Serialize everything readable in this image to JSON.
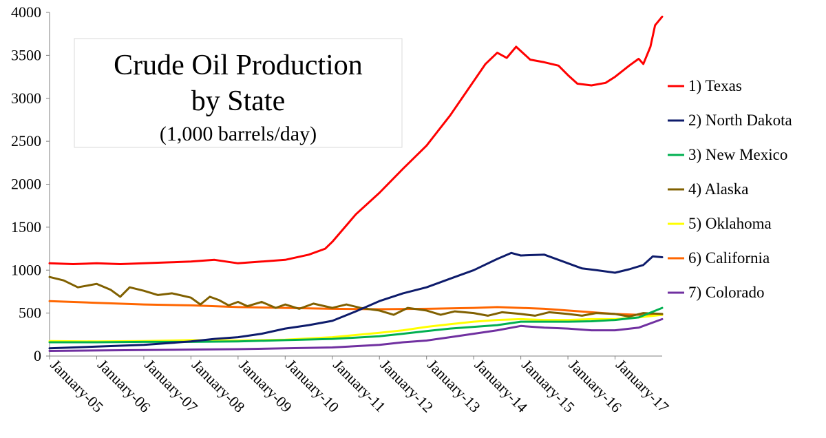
{
  "chart_data": {
    "type": "line",
    "title": "Crude Oil Production",
    "title_line2": "by State",
    "subtitle": "(1,000 barrels/day)",
    "xlabel": "",
    "ylabel": "",
    "ylim": [
      0,
      4000
    ],
    "y_ticks": [
      0,
      500,
      1000,
      1500,
      2000,
      2500,
      3000,
      3500,
      4000
    ],
    "x_ticks": [
      "January-05",
      "January-06",
      "January-07",
      "January-08",
      "January-09",
      "January-10",
      "January-11",
      "January-12",
      "January-13",
      "January-14",
      "January-15",
      "January-16",
      "January-17"
    ],
    "x_range_years": [
      2005.0,
      2018.0
    ],
    "legend_position": "right",
    "grid": false,
    "series": [
      {
        "name": "1) Texas",
        "color": "#ff0000",
        "points": [
          [
            2005.0,
            1080
          ],
          [
            2005.5,
            1070
          ],
          [
            2006.0,
            1080
          ],
          [
            2006.5,
            1070
          ],
          [
            2007.0,
            1080
          ],
          [
            2007.5,
            1090
          ],
          [
            2008.0,
            1100
          ],
          [
            2008.5,
            1120
          ],
          [
            2009.0,
            1080
          ],
          [
            2009.5,
            1100
          ],
          [
            2010.0,
            1120
          ],
          [
            2010.5,
            1180
          ],
          [
            2010.85,
            1250
          ],
          [
            2011.0,
            1330
          ],
          [
            2011.5,
            1650
          ],
          [
            2012.0,
            1900
          ],
          [
            2012.5,
            2180
          ],
          [
            2013.0,
            2450
          ],
          [
            2013.5,
            2800
          ],
          [
            2014.0,
            3200
          ],
          [
            2014.25,
            3400
          ],
          [
            2014.5,
            3530
          ],
          [
            2014.7,
            3470
          ],
          [
            2014.9,
            3600
          ],
          [
            2015.2,
            3450
          ],
          [
            2015.5,
            3420
          ],
          [
            2015.8,
            3380
          ],
          [
            2016.0,
            3270
          ],
          [
            2016.2,
            3170
          ],
          [
            2016.5,
            3150
          ],
          [
            2016.8,
            3180
          ],
          [
            2017.0,
            3250
          ],
          [
            2017.3,
            3380
          ],
          [
            2017.5,
            3460
          ],
          [
            2017.6,
            3400
          ],
          [
            2017.75,
            3600
          ],
          [
            2017.85,
            3850
          ],
          [
            2018.0,
            3950
          ]
        ]
      },
      {
        "name": "2) North Dakota",
        "color": "#0d1b6b",
        "points": [
          [
            2005.0,
            90
          ],
          [
            2006.0,
            110
          ],
          [
            2007.0,
            130
          ],
          [
            2008.0,
            170
          ],
          [
            2008.5,
            200
          ],
          [
            2009.0,
            220
          ],
          [
            2009.5,
            260
          ],
          [
            2010.0,
            320
          ],
          [
            2010.5,
            360
          ],
          [
            2011.0,
            410
          ],
          [
            2011.5,
            520
          ],
          [
            2012.0,
            640
          ],
          [
            2012.5,
            730
          ],
          [
            2013.0,
            800
          ],
          [
            2013.5,
            900
          ],
          [
            2014.0,
            1000
          ],
          [
            2014.5,
            1130
          ],
          [
            2014.8,
            1200
          ],
          [
            2015.0,
            1170
          ],
          [
            2015.5,
            1180
          ],
          [
            2016.0,
            1080
          ],
          [
            2016.3,
            1020
          ],
          [
            2016.6,
            1000
          ],
          [
            2017.0,
            970
          ],
          [
            2017.3,
            1010
          ],
          [
            2017.6,
            1060
          ],
          [
            2017.8,
            1160
          ],
          [
            2018.0,
            1150
          ]
        ]
      },
      {
        "name": "3) New Mexico",
        "color": "#00b050",
        "points": [
          [
            2005.0,
            160
          ],
          [
            2006.0,
            160
          ],
          [
            2007.0,
            165
          ],
          [
            2008.0,
            165
          ],
          [
            2009.0,
            170
          ],
          [
            2010.0,
            185
          ],
          [
            2011.0,
            200
          ],
          [
            2012.0,
            230
          ],
          [
            2012.5,
            260
          ],
          [
            2013.0,
            290
          ],
          [
            2013.5,
            320
          ],
          [
            2014.0,
            340
          ],
          [
            2014.5,
            360
          ],
          [
            2015.0,
            400
          ],
          [
            2015.5,
            400
          ],
          [
            2016.0,
            400
          ],
          [
            2016.5,
            405
          ],
          [
            2017.0,
            420
          ],
          [
            2017.5,
            450
          ],
          [
            2018.0,
            560
          ]
        ]
      },
      {
        "name": "4) Alaska",
        "color": "#806000",
        "points": [
          [
            2005.0,
            920
          ],
          [
            2005.3,
            880
          ],
          [
            2005.6,
            800
          ],
          [
            2006.0,
            840
          ],
          [
            2006.3,
            770
          ],
          [
            2006.5,
            690
          ],
          [
            2006.7,
            800
          ],
          [
            2007.0,
            760
          ],
          [
            2007.3,
            710
          ],
          [
            2007.6,
            730
          ],
          [
            2008.0,
            680
          ],
          [
            2008.2,
            600
          ],
          [
            2008.4,
            690
          ],
          [
            2008.6,
            650
          ],
          [
            2008.8,
            590
          ],
          [
            2009.0,
            630
          ],
          [
            2009.2,
            580
          ],
          [
            2009.5,
            630
          ],
          [
            2009.8,
            560
          ],
          [
            2010.0,
            600
          ],
          [
            2010.3,
            550
          ],
          [
            2010.6,
            610
          ],
          [
            2011.0,
            560
          ],
          [
            2011.3,
            600
          ],
          [
            2011.6,
            560
          ],
          [
            2012.0,
            530
          ],
          [
            2012.3,
            480
          ],
          [
            2012.6,
            560
          ],
          [
            2013.0,
            530
          ],
          [
            2013.3,
            480
          ],
          [
            2013.6,
            520
          ],
          [
            2014.0,
            500
          ],
          [
            2014.3,
            470
          ],
          [
            2014.6,
            510
          ],
          [
            2015.0,
            490
          ],
          [
            2015.3,
            470
          ],
          [
            2015.6,
            510
          ],
          [
            2016.0,
            490
          ],
          [
            2016.3,
            470
          ],
          [
            2016.6,
            500
          ],
          [
            2017.0,
            490
          ],
          [
            2017.3,
            460
          ],
          [
            2017.6,
            500
          ],
          [
            2018.0,
            490
          ]
        ]
      },
      {
        "name": "5) Oklahoma",
        "color": "#ffff00",
        "points": [
          [
            2005.0,
            175
          ],
          [
            2006.0,
            170
          ],
          [
            2007.0,
            175
          ],
          [
            2008.0,
            185
          ],
          [
            2009.0,
            180
          ],
          [
            2010.0,
            190
          ],
          [
            2011.0,
            220
          ],
          [
            2012.0,
            270
          ],
          [
            2012.5,
            300
          ],
          [
            2013.0,
            340
          ],
          [
            2013.5,
            370
          ],
          [
            2014.0,
            400
          ],
          [
            2014.5,
            420
          ],
          [
            2015.0,
            430
          ],
          [
            2015.5,
            420
          ],
          [
            2016.0,
            420
          ],
          [
            2016.5,
            430
          ],
          [
            2017.0,
            430
          ],
          [
            2017.5,
            450
          ],
          [
            2018.0,
            480
          ]
        ]
      },
      {
        "name": "6) California",
        "color": "#ff6600",
        "points": [
          [
            2005.0,
            640
          ],
          [
            2006.0,
            620
          ],
          [
            2007.0,
            600
          ],
          [
            2008.0,
            590
          ],
          [
            2009.0,
            570
          ],
          [
            2010.0,
            560
          ],
          [
            2011.0,
            550
          ],
          [
            2012.0,
            545
          ],
          [
            2013.0,
            550
          ],
          [
            2014.0,
            560
          ],
          [
            2014.5,
            570
          ],
          [
            2015.0,
            560
          ],
          [
            2015.5,
            550
          ],
          [
            2016.0,
            530
          ],
          [
            2016.5,
            510
          ],
          [
            2017.0,
            490
          ],
          [
            2017.5,
            480
          ],
          [
            2018.0,
            480
          ]
        ]
      },
      {
        "name": "7) Colorado",
        "color": "#7030a0",
        "points": [
          [
            2005.0,
            60
          ],
          [
            2006.0,
            65
          ],
          [
            2007.0,
            70
          ],
          [
            2008.0,
            75
          ],
          [
            2009.0,
            80
          ],
          [
            2010.0,
            90
          ],
          [
            2011.0,
            100
          ],
          [
            2012.0,
            130
          ],
          [
            2012.5,
            160
          ],
          [
            2013.0,
            180
          ],
          [
            2013.5,
            220
          ],
          [
            2014.0,
            260
          ],
          [
            2014.5,
            300
          ],
          [
            2015.0,
            350
          ],
          [
            2015.5,
            330
          ],
          [
            2016.0,
            320
          ],
          [
            2016.5,
            300
          ],
          [
            2017.0,
            300
          ],
          [
            2017.5,
            330
          ],
          [
            2018.0,
            430
          ]
        ]
      }
    ]
  }
}
